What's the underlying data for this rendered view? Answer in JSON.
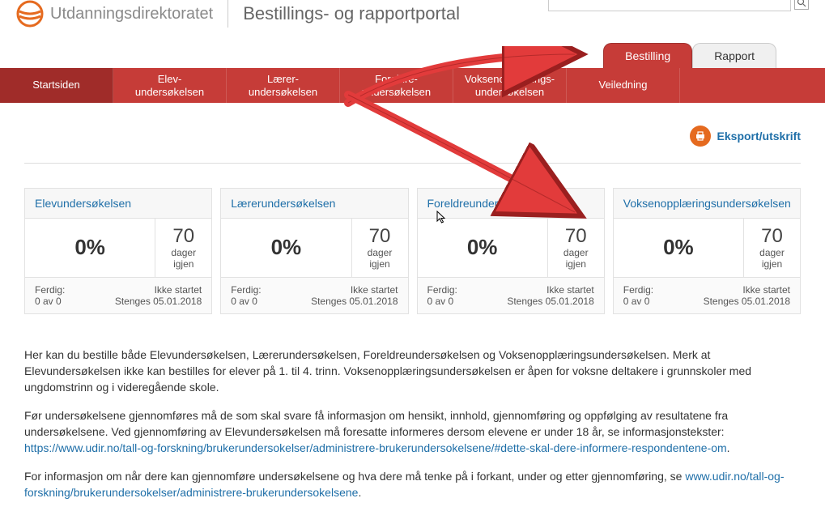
{
  "colors": {
    "brand_red": "#c63c38",
    "brand_red_dark": "#a02c29",
    "link_blue": "#1f6fa8",
    "orange": "#e56a1f",
    "arrow_fill": "#e23b3b",
    "arrow_stroke": "#9a1f1f"
  },
  "header": {
    "org_name": "Utdanningsdirektoratet",
    "portal_title": "Bestillings- og rapportportal"
  },
  "portal_tabs": {
    "bestilling": "Bestilling",
    "rapport": "Rapport"
  },
  "nav": {
    "startsiden": "Startsiden",
    "elev_l1": "Elev-",
    "elev_l2": "undersøkelsen",
    "laerer_l1": "Lærer-",
    "laerer_l2": "undersøkelsen",
    "foreldre_l1": "Foreldre-",
    "foreldre_l2": "undersøkelsen",
    "voksen_l1": "Voksenopplærings-",
    "voksen_l2": "undersøkelsen",
    "veiledning": "Veiledning"
  },
  "export_label": "Eksport/utskrift",
  "cards": [
    {
      "title": "Elevundersøkelsen",
      "pct": "0%",
      "days": "70",
      "days_lbl1": "dager",
      "days_lbl2": "igjen",
      "ferdig_lbl": "Ferdig:",
      "ferdig_val": "0 av 0",
      "status": "Ikke startet",
      "stenges": "Stenges 05.01.2018"
    },
    {
      "title": "Lærerundersøkelsen",
      "pct": "0%",
      "days": "70",
      "days_lbl1": "dager",
      "days_lbl2": "igjen",
      "ferdig_lbl": "Ferdig:",
      "ferdig_val": "0 av 0",
      "status": "Ikke startet",
      "stenges": "Stenges 05.01.2018"
    },
    {
      "title": "Foreldreundersøkelsen",
      "pct": "0%",
      "days": "70",
      "days_lbl1": "dager",
      "days_lbl2": "igjen",
      "ferdig_lbl": "Ferdig:",
      "ferdig_val": "0 av 0",
      "status": "Ikke startet",
      "stenges": "Stenges 05.01.2018"
    },
    {
      "title": "Voksenopplæringsundersøkelsen",
      "pct": "0%",
      "days": "70",
      "days_lbl1": "dager",
      "days_lbl2": "igjen",
      "ferdig_lbl": "Ferdig:",
      "ferdig_val": "0 av 0",
      "status": "Ikke startet",
      "stenges": "Stenges 05.01.2018"
    }
  ],
  "body": {
    "p1": "Her kan du bestille både Elevundersøkelsen, Lærerundersøkelsen, Foreldreundersøkelsen og Voksenopplæringsundersøkelsen. Merk at Elevundersøkelsen ikke kan bestilles for elever på 1. til 4. trinn. Voksenopplæringsundersøkelsen er åpen for voksne deltakere i grunnskoler med ungdomstrinn og i videregående skole.",
    "p2": "Før undersøkelsene gjennomføres må de som skal svare få informasjon om hensikt, innhold, gjennomføring og oppfølging av resultatene fra undersøkelsene. Ved gjennomføring av Elevundersøkelsen må foresatte informeres dersom elevene er under 18 år, se informasjonstekster:",
    "p2_link": "https://www.udir.no/tall-og-forskning/brukerundersokelser/administrere-brukerundersokelsene/#dette-skal-dere-informere-respondentene-om",
    "p3a": "For informasjon om når dere kan gjennomføre undersøkelsene og hva dere må tenke på i forkant, under og etter gjennomføring, se ",
    "p3_link": "www.udir.no/tall-og-forskning/brukerundersokelser/administrere-brukerundersokelsene"
  }
}
